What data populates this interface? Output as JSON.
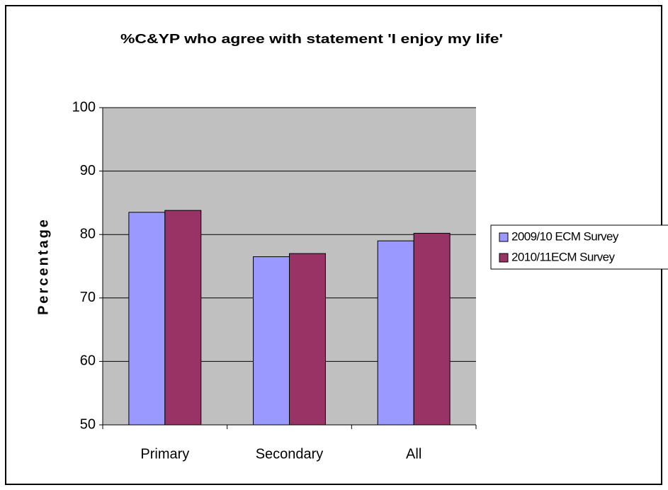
{
  "chart_data": {
    "type": "bar",
    "title": "%C&YP who agree with statement 'I enjoy my life'",
    "y_label": "Percentage",
    "categories": [
      "Primary",
      "Secondary",
      "All"
    ],
    "series": [
      {
        "name": "2009/10 ECM Survey",
        "color": "#9999ff",
        "values": [
          83.5,
          76.5,
          79.0
        ]
      },
      {
        "name": "2010/11ECM Survey",
        "color": "#993366",
        "values": [
          83.8,
          77.0,
          80.2
        ]
      }
    ],
    "ylim": [
      50,
      100
    ],
    "yticks": [
      50,
      60,
      70,
      80,
      90,
      100
    ],
    "grid": true,
    "legend": "right"
  }
}
